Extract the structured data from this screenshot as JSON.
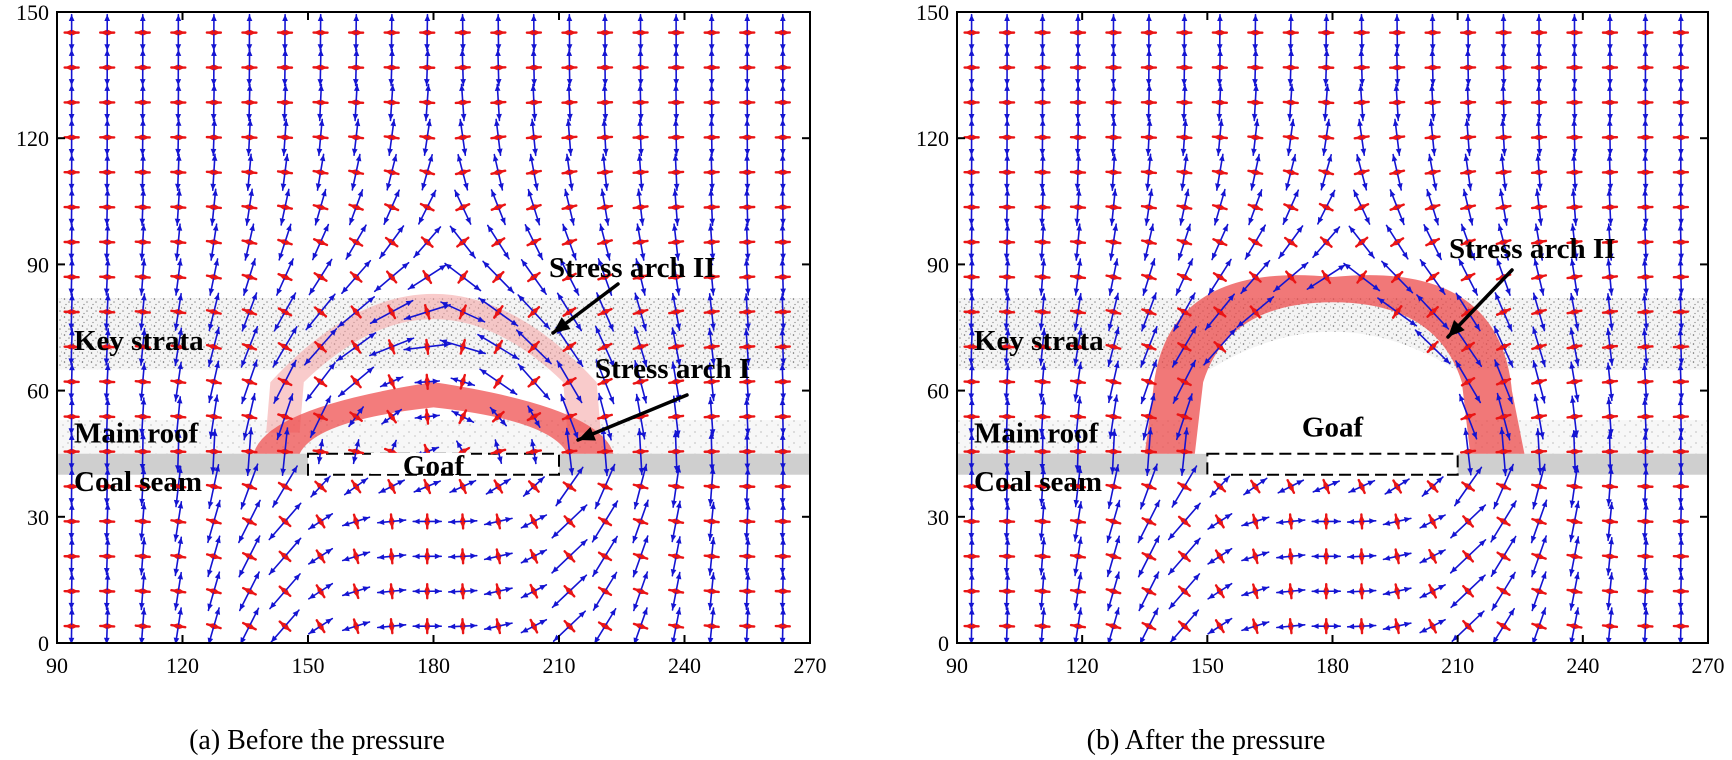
{
  "chart_data": [
    {
      "type": "vector-field",
      "panel": "a",
      "caption": "(a)  Before the pressure",
      "xlim": [
        90,
        270
      ],
      "ylim": [
        0,
        150
      ],
      "x_ticks": [
        "90",
        "120",
        "150",
        "180",
        "210",
        "240",
        "270"
      ],
      "y_ticks": [
        "0",
        "30",
        "60",
        "90",
        "120",
        "150"
      ],
      "layers": [
        {
          "name": "Key strata",
          "y_range": [
            65,
            82
          ]
        },
        {
          "name": "Main roof",
          "y_range": [
            45,
            53
          ]
        },
        {
          "name": "Coal seam",
          "y_range": [
            40,
            45
          ]
        }
      ],
      "goaf": {
        "label": "Goaf",
        "x_range": [
          150,
          210
        ],
        "y_range": [
          40,
          45
        ]
      },
      "arches": [
        {
          "label": "Stress arch I",
          "x_range": [
            138,
            222
          ],
          "peak_y": 59
        },
        {
          "label": "Stress arch II",
          "x_range": [
            145,
            215
          ],
          "peak_y": 84
        }
      ],
      "grid_step_x": 8.5,
      "grid_step_y": 8.3,
      "colors": {
        "major_stress": "#1414d2",
        "minor_stress": "#ea1515",
        "arch": "#f06060",
        "coal": "#cfcfcf"
      }
    },
    {
      "type": "vector-field",
      "panel": "b",
      "caption": "(b)  After the pressure",
      "xlim": [
        90,
        270
      ],
      "ylim": [
        0,
        150
      ],
      "x_ticks": [
        "90",
        "120",
        "150",
        "180",
        "210",
        "240",
        "270"
      ],
      "y_ticks": [
        "0",
        "30",
        "60",
        "90",
        "120",
        "150"
      ],
      "layers": [
        {
          "name": "Key strata",
          "y_range": [
            65,
            82
          ]
        },
        {
          "name": "Main roof",
          "y_range": [
            45,
            53
          ]
        },
        {
          "name": "Coal seam",
          "y_range": [
            40,
            45
          ]
        }
      ],
      "goaf": {
        "label": "Goaf",
        "x_range": [
          150,
          210
        ],
        "y_range": [
          40,
          45
        ]
      },
      "arches": [
        {
          "label": "Stress arch II",
          "x_range": [
            140,
            220
          ],
          "peak_y": 85
        }
      ],
      "grid_step_x": 8.5,
      "grid_step_y": 8.3,
      "colors": {
        "major_stress": "#1414d2",
        "minor_stress": "#ea1515",
        "arch": "#ee5a5a",
        "coal": "#cfcfcf"
      }
    }
  ]
}
